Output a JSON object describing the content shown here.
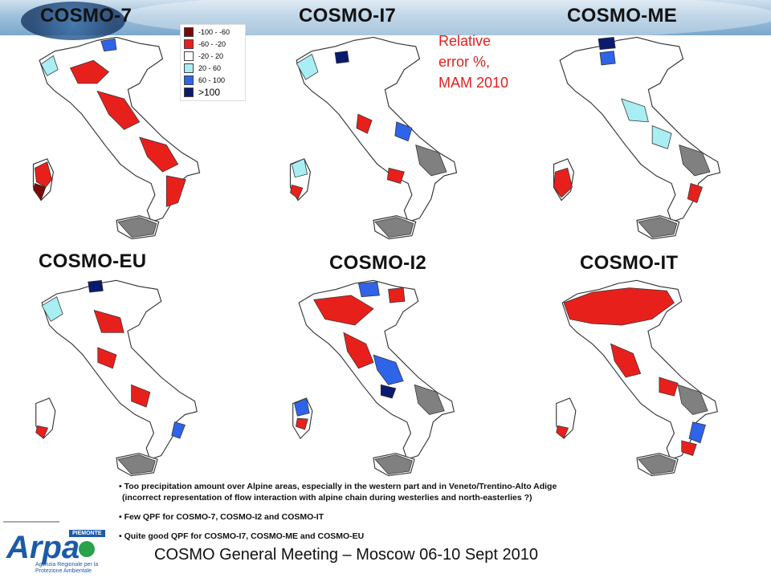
{
  "header": {
    "titles": {
      "cosmo7": "COSMO-7",
      "cosmoi7": "COSMO-I7",
      "cosmome": "COSMO-ME",
      "cosmoeu": "COSMO-EU",
      "cosmoi2": "COSMO-I2",
      "cosmoit": "COSMO-IT"
    }
  },
  "legend": {
    "items": [
      {
        "label": "-100 - -60",
        "color": "#7a0a0a"
      },
      {
        "label": "-60 - -20",
        "color": "#e8201c"
      },
      {
        "label": "-20 - 20",
        "color": "#ffffff"
      },
      {
        "label": "20 - 60",
        "color": "#a8eef2"
      },
      {
        "label": "60 - 100",
        "color": "#2f63e8"
      },
      {
        "label": ">100",
        "color": "#0a1a6e"
      }
    ],
    "no_data_color": "#808080"
  },
  "caption": {
    "line1": "Relative",
    "line2": "error %,",
    "line3": "MAM 2010"
  },
  "bullets": {
    "b1a": "• Too precipitation amount over Alpine areas, especially in the western part and in Veneto/Trentino-Alto  Adige",
    "b1b": "(incorrect  representation  of flow interaction with alpine chain during westerlies  and north-easterlies  ?)",
    "b2": "• Few QPF for COSMO-7, COSMO-I2 and COSMO-IT",
    "b3": "• Quite good QPF for COSMO-I7, COSMO-ME and COSMO-EU"
  },
  "footer": {
    "title": "COSMO General Meeting – Moscow 06-10 Sept 2010"
  },
  "logo": {
    "word": "Arpa",
    "tag": "PIEMONTE",
    "sub": "Agenzia Regionale per la Protezione Ambientale"
  }
}
